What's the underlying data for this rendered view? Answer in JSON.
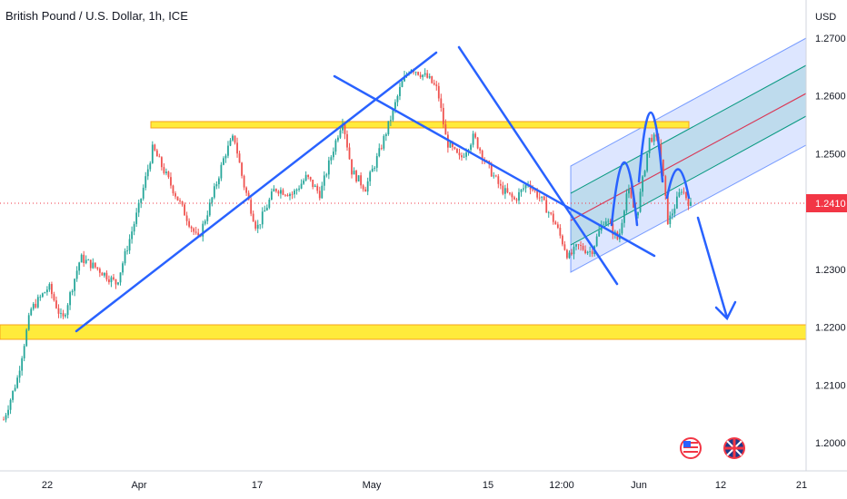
{
  "chart_data": {
    "type": "candlestick",
    "title": "British Pound / U.S. Dollar, 1h, ICE",
    "currency_label": "USD",
    "last_price": "1.2410",
    "y_ticks": [
      "1.2700",
      "1.2600",
      "1.2500",
      "1.2300",
      "1.2200",
      "1.2100",
      "1.2000"
    ],
    "ylim": [
      1.195,
      1.274
    ],
    "x_ticks": [
      "22",
      "Apr",
      "17",
      "May",
      "15",
      "12:00",
      "Jun",
      "12",
      "21"
    ],
    "grid": false,
    "colors": {
      "up": "#26a69a",
      "down": "#ef5350",
      "trendline": "#2962ff",
      "zone_fill": "#ffeb3b",
      "zone_border": "#f7a21b",
      "channel_fill": "#2962ff",
      "channel_mid": "#f23645",
      "channel_inner": "#089981",
      "price_tag": "#f23645"
    },
    "path_anchors": [
      {
        "t": 0,
        "p": 1.204
      },
      {
        "t": 3,
        "p": 1.211
      },
      {
        "t": 6,
        "p": 1.223
      },
      {
        "t": 10,
        "p": 1.227
      },
      {
        "t": 13,
        "p": 1.221
      },
      {
        "t": 17,
        "p": 1.232
      },
      {
        "t": 21,
        "p": 1.23
      },
      {
        "t": 25,
        "p": 1.2275
      },
      {
        "t": 30,
        "p": 1.241
      },
      {
        "t": 33,
        "p": 1.251
      },
      {
        "t": 38,
        "p": 1.243
      },
      {
        "t": 43,
        "p": 1.235
      },
      {
        "t": 46,
        "p": 1.242
      },
      {
        "t": 49,
        "p": 1.25
      },
      {
        "t": 51,
        "p": 1.253
      },
      {
        "t": 53,
        "p": 1.245
      },
      {
        "t": 56,
        "p": 1.237
      },
      {
        "t": 60,
        "p": 1.244
      },
      {
        "t": 64,
        "p": 1.243
      },
      {
        "t": 67,
        "p": 1.246
      },
      {
        "t": 70,
        "p": 1.243
      },
      {
        "t": 73,
        "p": 1.251
      },
      {
        "t": 75,
        "p": 1.256
      },
      {
        "t": 77,
        "p": 1.247
      },
      {
        "t": 80,
        "p": 1.244
      },
      {
        "t": 83,
        "p": 1.25
      },
      {
        "t": 86,
        "p": 1.257
      },
      {
        "t": 88,
        "p": 1.262
      },
      {
        "t": 90,
        "p": 1.265
      },
      {
        "t": 92,
        "p": 1.264
      },
      {
        "t": 94,
        "p": 1.263
      },
      {
        "t": 96,
        "p": 1.261
      },
      {
        "t": 98,
        "p": 1.252
      },
      {
        "t": 101,
        "p": 1.249
      },
      {
        "t": 104,
        "p": 1.253
      },
      {
        "t": 107,
        "p": 1.248
      },
      {
        "t": 110,
        "p": 1.244
      },
      {
        "t": 113,
        "p": 1.242
      },
      {
        "t": 116,
        "p": 1.245
      },
      {
        "t": 119,
        "p": 1.242
      },
      {
        "t": 122,
        "p": 1.238
      },
      {
        "t": 125,
        "p": 1.232
      },
      {
        "t": 127,
        "p": 1.234
      },
      {
        "t": 130,
        "p": 1.233
      },
      {
        "t": 133,
        "p": 1.239
      },
      {
        "t": 136,
        "p": 1.235
      },
      {
        "t": 138,
        "p": 1.244
      },
      {
        "t": 140,
        "p": 1.239
      },
      {
        "t": 143,
        "p": 1.253
      },
      {
        "t": 145,
        "p": 1.252
      },
      {
        "t": 147,
        "p": 1.238
      },
      {
        "t": 150,
        "p": 1.244
      },
      {
        "t": 152,
        "p": 1.241
      }
    ]
  }
}
